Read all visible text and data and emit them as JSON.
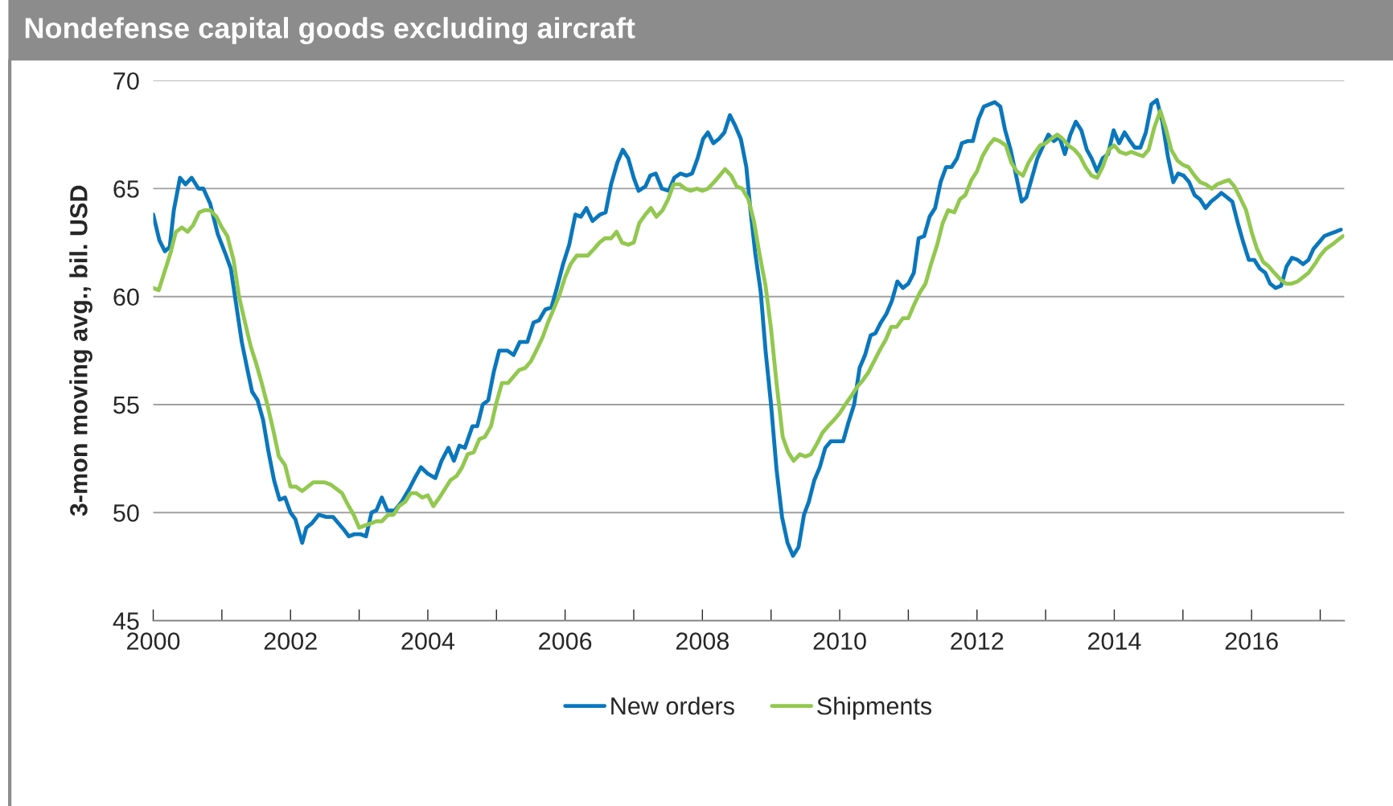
{
  "chart_data": {
    "type": "line",
    "title": "Nondefense capital goods excluding aircraft",
    "ylabel": "3-mon moving avg., bil. USD",
    "xlim": [
      2000,
      2017.35
    ],
    "ylim": [
      45,
      70
    ],
    "yticks": [
      45,
      50,
      55,
      60,
      65,
      70
    ],
    "xticks": [
      2000,
      {
        "value": 2001,
        "label": null
      },
      2002,
      {
        "value": 2003,
        "label": null
      },
      2004,
      {
        "value": 2005,
        "label": null
      },
      2006,
      {
        "value": 2007,
        "label": null
      },
      2008,
      {
        "value": 2009,
        "label": null
      },
      2010,
      {
        "value": 2011,
        "label": null
      },
      2012,
      {
        "value": 2013,
        "label": null
      },
      2014,
      {
        "value": 2015,
        "label": null
      },
      2016,
      {
        "value": 2017,
        "label": null
      }
    ],
    "grid": "y",
    "legend": "bottom",
    "line_style": "solid",
    "marker": "none",
    "series": [
      {
        "name": "New orders",
        "color": "#0a77bd",
        "x": [
          2000.0,
          2000.09,
          2000.17,
          2000.24,
          2000.3,
          2000.39,
          2000.47,
          2000.56,
          2000.66,
          2000.73,
          2000.83,
          2000.94,
          2001.05,
          2001.13,
          2001.21,
          2001.29,
          2001.38,
          2001.44,
          2001.52,
          2001.6,
          2001.68,
          2001.76,
          2001.84,
          2001.92,
          2002.0,
          2002.07,
          2002.17,
          2002.23,
          2002.31,
          2002.41,
          2002.52,
          2002.62,
          2002.7,
          2002.78,
          2002.85,
          2002.93,
          2003.02,
          2003.1,
          2003.18,
          2003.25,
          2003.33,
          2003.41,
          2003.52,
          2003.62,
          2003.73,
          2003.81,
          2003.9,
          2004.0,
          2004.11,
          2004.2,
          2004.3,
          2004.38,
          2004.46,
          2004.54,
          2004.65,
          2004.72,
          2004.8,
          2004.88,
          2004.96,
          2005.04,
          2005.16,
          2005.25,
          2005.34,
          2005.45,
          2005.54,
          2005.62,
          2005.71,
          2005.8,
          2005.88,
          2005.97,
          2006.06,
          2006.15,
          2006.23,
          2006.31,
          2006.4,
          2006.51,
          2006.59,
          2006.67,
          2006.76,
          2006.84,
          2006.92,
          2007.0,
          2007.07,
          2007.17,
          2007.24,
          2007.32,
          2007.41,
          2007.51,
          2007.59,
          2007.68,
          2007.77,
          2007.85,
          2007.93,
          2008.01,
          2008.08,
          2008.16,
          2008.24,
          2008.32,
          2008.4,
          2008.48,
          2008.56,
          2008.64,
          2008.7,
          2008.77,
          2008.85,
          2008.92,
          2009.0,
          2009.08,
          2009.16,
          2009.24,
          2009.32,
          2009.4,
          2009.48,
          2009.55,
          2009.63,
          2009.71,
          2009.79,
          2009.87,
          2009.95,
          2010.05,
          2010.13,
          2010.21,
          2010.29,
          2010.37,
          2010.45,
          2010.52,
          2010.6,
          2010.68,
          2010.76,
          2010.84,
          2010.92,
          2011.0,
          2011.08,
          2011.15,
          2011.23,
          2011.31,
          2011.39,
          2011.47,
          2011.55,
          2011.63,
          2011.71,
          2011.78,
          2011.86,
          2011.94,
          2012.02,
          2012.1,
          2012.18,
          2012.26,
          2012.34,
          2012.41,
          2012.49,
          2012.57,
          2012.65,
          2012.72,
          2012.8,
          2012.88,
          2013.04,
          2013.12,
          2013.2,
          2013.28,
          2013.36,
          2013.44,
          2013.52,
          2013.6,
          2013.67,
          2013.75,
          2013.83,
          2013.91,
          2013.99,
          2014.07,
          2014.15,
          2014.23,
          2014.3,
          2014.38,
          2014.46,
          2014.54,
          2014.62,
          2014.7,
          2014.78,
          2014.86,
          2014.93,
          2015.01,
          2015.09,
          2015.17,
          2015.25,
          2015.33,
          2015.41,
          2015.49,
          2015.56,
          2015.64,
          2015.72,
          2015.8,
          2015.88,
          2015.96,
          2016.04,
          2016.12,
          2016.2,
          2016.27,
          2016.35,
          2016.43,
          2016.51,
          2016.59,
          2016.67,
          2016.75,
          2016.83,
          2016.9,
          2016.98,
          2017.06,
          2017.14,
          2017.22,
          2017.3
        ],
        "values": [
          63.8,
          62.6,
          62.1,
          62.3,
          64.0,
          65.5,
          65.2,
          65.5,
          65.0,
          65.0,
          64.3,
          62.9,
          62.0,
          61.3,
          59.6,
          57.9,
          56.5,
          55.6,
          55.2,
          54.3,
          52.8,
          51.5,
          50.6,
          50.7,
          50.0,
          49.7,
          48.6,
          49.3,
          49.5,
          49.9,
          49.8,
          49.8,
          49.5,
          49.2,
          48.9,
          49.0,
          49.0,
          48.9,
          50.0,
          50.1,
          50.7,
          50.1,
          50.1,
          50.5,
          51.1,
          51.6,
          52.1,
          51.8,
          51.6,
          52.4,
          53.0,
          52.4,
          53.1,
          53.0,
          54.0,
          54.0,
          55.0,
          55.2,
          56.5,
          57.5,
          57.5,
          57.3,
          57.9,
          57.9,
          58.8,
          58.9,
          59.4,
          59.5,
          60.4,
          61.5,
          62.4,
          63.8,
          63.7,
          64.1,
          63.5,
          63.8,
          63.9,
          65.2,
          66.2,
          66.8,
          66.4,
          65.5,
          64.9,
          65.1,
          65.6,
          65.7,
          65.0,
          64.9,
          65.5,
          65.7,
          65.6,
          65.7,
          66.4,
          67.3,
          67.6,
          67.1,
          67.3,
          67.6,
          68.4,
          67.9,
          67.3,
          66.0,
          64.0,
          62.0,
          60.2,
          57.5,
          55.0,
          52.0,
          49.8,
          48.6,
          48.0,
          48.4,
          49.9,
          50.5,
          51.5,
          52.1,
          53.0,
          53.3,
          53.3,
          53.3,
          54.2,
          55.0,
          56.7,
          57.3,
          58.2,
          58.3,
          58.8,
          59.2,
          59.8,
          60.7,
          60.4,
          60.6,
          61.1,
          62.7,
          62.8,
          63.7,
          64.1,
          65.3,
          66.0,
          66.0,
          66.4,
          67.1,
          67.2,
          67.2,
          68.2,
          68.8,
          68.9,
          69.0,
          68.8,
          67.7,
          66.8,
          65.6,
          64.4,
          64.6,
          65.5,
          66.4,
          67.5,
          67.2,
          67.4,
          66.6,
          67.5,
          68.1,
          67.7,
          66.8,
          66.4,
          65.8,
          66.4,
          66.6,
          67.7,
          67.1,
          67.6,
          67.2,
          66.9,
          66.9,
          67.6,
          68.9,
          69.1,
          68.1,
          66.5,
          65.3,
          65.7,
          65.6,
          65.3,
          64.7,
          64.5,
          64.1,
          64.4,
          64.6,
          64.8,
          64.6,
          64.4,
          63.4,
          62.5,
          61.7,
          61.7,
          61.3,
          61.1,
          60.6,
          60.4,
          60.5,
          61.4,
          61.8,
          61.7,
          61.5,
          61.7,
          62.2,
          62.5,
          62.8,
          62.9,
          63.0,
          63.1
        ]
      },
      {
        "name": "Shipments",
        "color": "#92c84f",
        "x": [
          2000.0,
          2000.08,
          2000.17,
          2000.25,
          2000.33,
          2000.42,
          2000.5,
          2000.58,
          2000.67,
          2000.75,
          2000.83,
          2000.92,
          2001.0,
          2001.08,
          2001.17,
          2001.25,
          2001.33,
          2001.42,
          2001.5,
          2001.58,
          2001.67,
          2001.75,
          2001.83,
          2001.92,
          2002.0,
          2002.08,
          2002.17,
          2002.25,
          2002.33,
          2002.5,
          2002.58,
          2002.67,
          2002.75,
          2002.83,
          2002.92,
          2003.0,
          2003.08,
          2003.17,
          2003.25,
          2003.33,
          2003.42,
          2003.5,
          2003.58,
          2003.67,
          2003.75,
          2003.83,
          2003.92,
          2004.0,
          2004.08,
          2004.17,
          2004.25,
          2004.33,
          2004.42,
          2004.5,
          2004.58,
          2004.67,
          2004.75,
          2004.83,
          2004.92,
          2005.0,
          2005.08,
          2005.17,
          2005.25,
          2005.33,
          2005.42,
          2005.5,
          2005.58,
          2005.67,
          2005.75,
          2005.83,
          2005.92,
          2006.0,
          2006.08,
          2006.17,
          2006.25,
          2006.33,
          2006.42,
          2006.5,
          2006.58,
          2006.67,
          2006.75,
          2006.83,
          2006.92,
          2007.0,
          2007.08,
          2007.17,
          2007.25,
          2007.33,
          2007.42,
          2007.5,
          2007.58,
          2007.67,
          2007.75,
          2007.83,
          2007.92,
          2008.0,
          2008.08,
          2008.17,
          2008.25,
          2008.33,
          2008.42,
          2008.5,
          2008.58,
          2008.67,
          2008.75,
          2008.83,
          2008.92,
          2009.0,
          2009.08,
          2009.17,
          2009.25,
          2009.33,
          2009.42,
          2009.5,
          2009.58,
          2009.67,
          2009.75,
          2009.83,
          2009.92,
          2010.0,
          2010.08,
          2010.17,
          2010.25,
          2010.33,
          2010.42,
          2010.5,
          2010.58,
          2010.67,
          2010.75,
          2010.83,
          2010.92,
          2011.0,
          2011.08,
          2011.17,
          2011.25,
          2011.33,
          2011.42,
          2011.5,
          2011.58,
          2011.67,
          2011.75,
          2011.83,
          2011.92,
          2012.0,
          2012.08,
          2012.17,
          2012.25,
          2012.33,
          2012.42,
          2012.5,
          2012.58,
          2012.67,
          2012.75,
          2012.83,
          2012.92,
          2013.0,
          2013.08,
          2013.17,
          2013.25,
          2013.33,
          2013.42,
          2013.5,
          2013.58,
          2013.67,
          2013.75,
          2013.83,
          2013.92,
          2014.0,
          2014.08,
          2014.17,
          2014.25,
          2014.33,
          2014.42,
          2014.5,
          2014.58,
          2014.67,
          2014.75,
          2014.83,
          2014.92,
          2015.0,
          2015.08,
          2015.17,
          2015.25,
          2015.33,
          2015.42,
          2015.5,
          2015.58,
          2015.67,
          2015.75,
          2015.83,
          2015.92,
          2016.0,
          2016.08,
          2016.17,
          2016.25,
          2016.33,
          2016.42,
          2016.5,
          2016.58,
          2016.67,
          2016.75,
          2016.83,
          2016.92,
          2017.0,
          2017.08,
          2017.17,
          2017.25,
          2017.33
        ],
        "values": [
          60.4,
          60.3,
          61.2,
          62.0,
          63.0,
          63.2,
          63.0,
          63.3,
          63.9,
          64.0,
          64.0,
          63.7,
          63.2,
          62.8,
          61.7,
          60.0,
          58.9,
          57.7,
          56.9,
          56.0,
          54.9,
          53.8,
          52.6,
          52.2,
          51.2,
          51.2,
          51.0,
          51.2,
          51.4,
          51.4,
          51.3,
          51.1,
          50.9,
          50.4,
          49.9,
          49.3,
          49.4,
          49.5,
          49.6,
          49.6,
          49.9,
          49.9,
          50.3,
          50.5,
          50.9,
          50.9,
          50.7,
          50.8,
          50.3,
          50.7,
          51.1,
          51.5,
          51.7,
          52.1,
          52.7,
          52.8,
          53.4,
          53.5,
          54.0,
          55.1,
          56.0,
          56.0,
          56.3,
          56.6,
          56.7,
          57.0,
          57.5,
          58.1,
          58.8,
          59.4,
          60.1,
          60.9,
          61.5,
          61.9,
          61.9,
          61.9,
          62.2,
          62.5,
          62.7,
          62.7,
          63.0,
          62.5,
          62.4,
          62.5,
          63.4,
          63.8,
          64.1,
          63.7,
          64.0,
          64.5,
          65.2,
          65.2,
          65.0,
          64.9,
          65.0,
          64.9,
          65.0,
          65.3,
          65.6,
          65.9,
          65.6,
          65.1,
          65.0,
          64.5,
          63.5,
          62.0,
          60.5,
          58.5,
          56.0,
          53.5,
          52.8,
          52.4,
          52.7,
          52.6,
          52.7,
          53.2,
          53.7,
          54.0,
          54.3,
          54.6,
          55.0,
          55.4,
          55.8,
          56.1,
          56.5,
          57.0,
          57.5,
          58.0,
          58.6,
          58.6,
          59.0,
          59.0,
          59.6,
          60.2,
          60.6,
          61.5,
          62.4,
          63.4,
          64.0,
          63.9,
          64.5,
          64.7,
          65.4,
          65.8,
          66.5,
          67.0,
          67.3,
          67.2,
          67.0,
          66.2,
          65.8,
          65.6,
          66.2,
          66.6,
          67.0,
          67.1,
          67.3,
          67.5,
          67.3,
          67.0,
          66.8,
          66.5,
          66.0,
          65.6,
          65.5,
          66.0,
          66.8,
          67.0,
          66.7,
          66.6,
          66.7,
          66.6,
          66.5,
          66.8,
          67.8,
          68.6,
          67.8,
          66.8,
          66.3,
          66.1,
          66.0,
          65.6,
          65.3,
          65.2,
          65.0,
          65.2,
          65.3,
          65.4,
          65.1,
          64.6,
          64.0,
          63.0,
          62.2,
          61.6,
          61.4,
          61.1,
          60.8,
          60.6,
          60.6,
          60.7,
          60.9,
          61.1,
          61.5,
          61.9,
          62.2,
          62.4,
          62.6,
          62.8
        ]
      }
    ]
  }
}
